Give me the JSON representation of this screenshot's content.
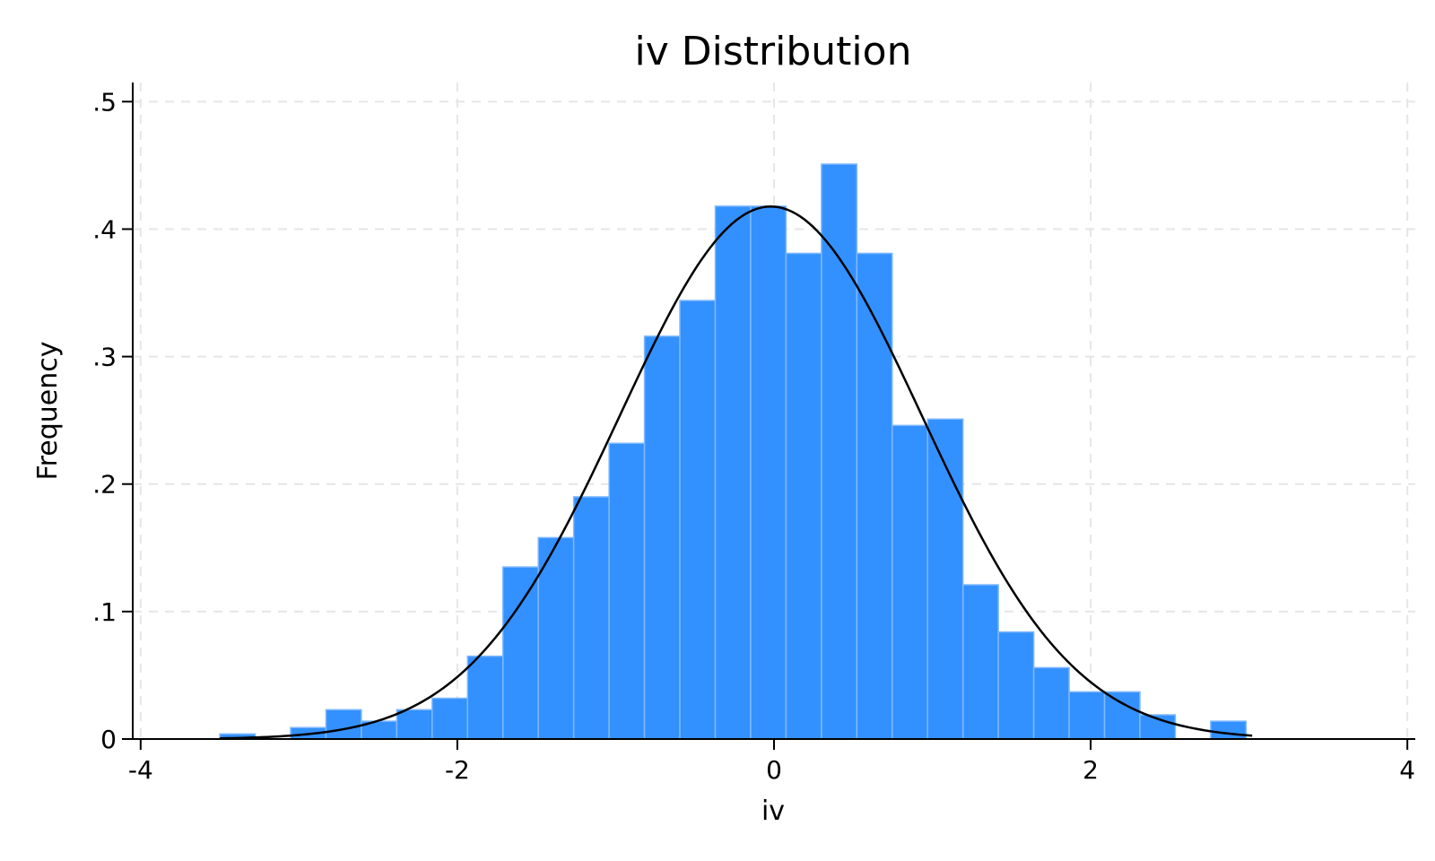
{
  "chart_data": {
    "type": "bar",
    "subtype": "histogram with normal density curve",
    "title": "iv Distribution",
    "xlabel": "iv",
    "ylabel": "Frequency",
    "xlim": [
      -4.05,
      4.05
    ],
    "ylim": [
      0,
      0.515
    ],
    "x_ticks": [
      -4,
      -2,
      0,
      2,
      4
    ],
    "x_tick_labels": [
      "-4",
      "-2",
      "0",
      "2",
      "4"
    ],
    "y_ticks": [
      0,
      0.1,
      0.2,
      0.3,
      0.4,
      0.5
    ],
    "y_tick_labels": [
      "0",
      ".1",
      ".2",
      ".3",
      ".4",
      ".5"
    ],
    "grid": true,
    "bin_start": -3.5,
    "bin_width": 0.2235,
    "values": [
      0.004,
      0.0,
      0.009,
      0.023,
      0.014,
      0.023,
      0.032,
      0.065,
      0.135,
      0.158,
      0.19,
      0.232,
      0.316,
      0.344,
      0.418,
      0.418,
      0.381,
      0.451,
      0.381,
      0.246,
      0.251,
      0.121,
      0.084,
      0.056,
      0.037,
      0.037,
      0.019,
      0.0,
      0.014
    ],
    "curve": {
      "type": "normal density",
      "mean": -0.02,
      "sd": 0.955,
      "x_range": [
        -3.5,
        3.02
      ]
    },
    "colors": {
      "bar_fill": "#3391ff",
      "bar_edge": "#7fb8ff",
      "curve": "#000000",
      "grid": "#e6e6e6",
      "axis": "#000000"
    }
  }
}
